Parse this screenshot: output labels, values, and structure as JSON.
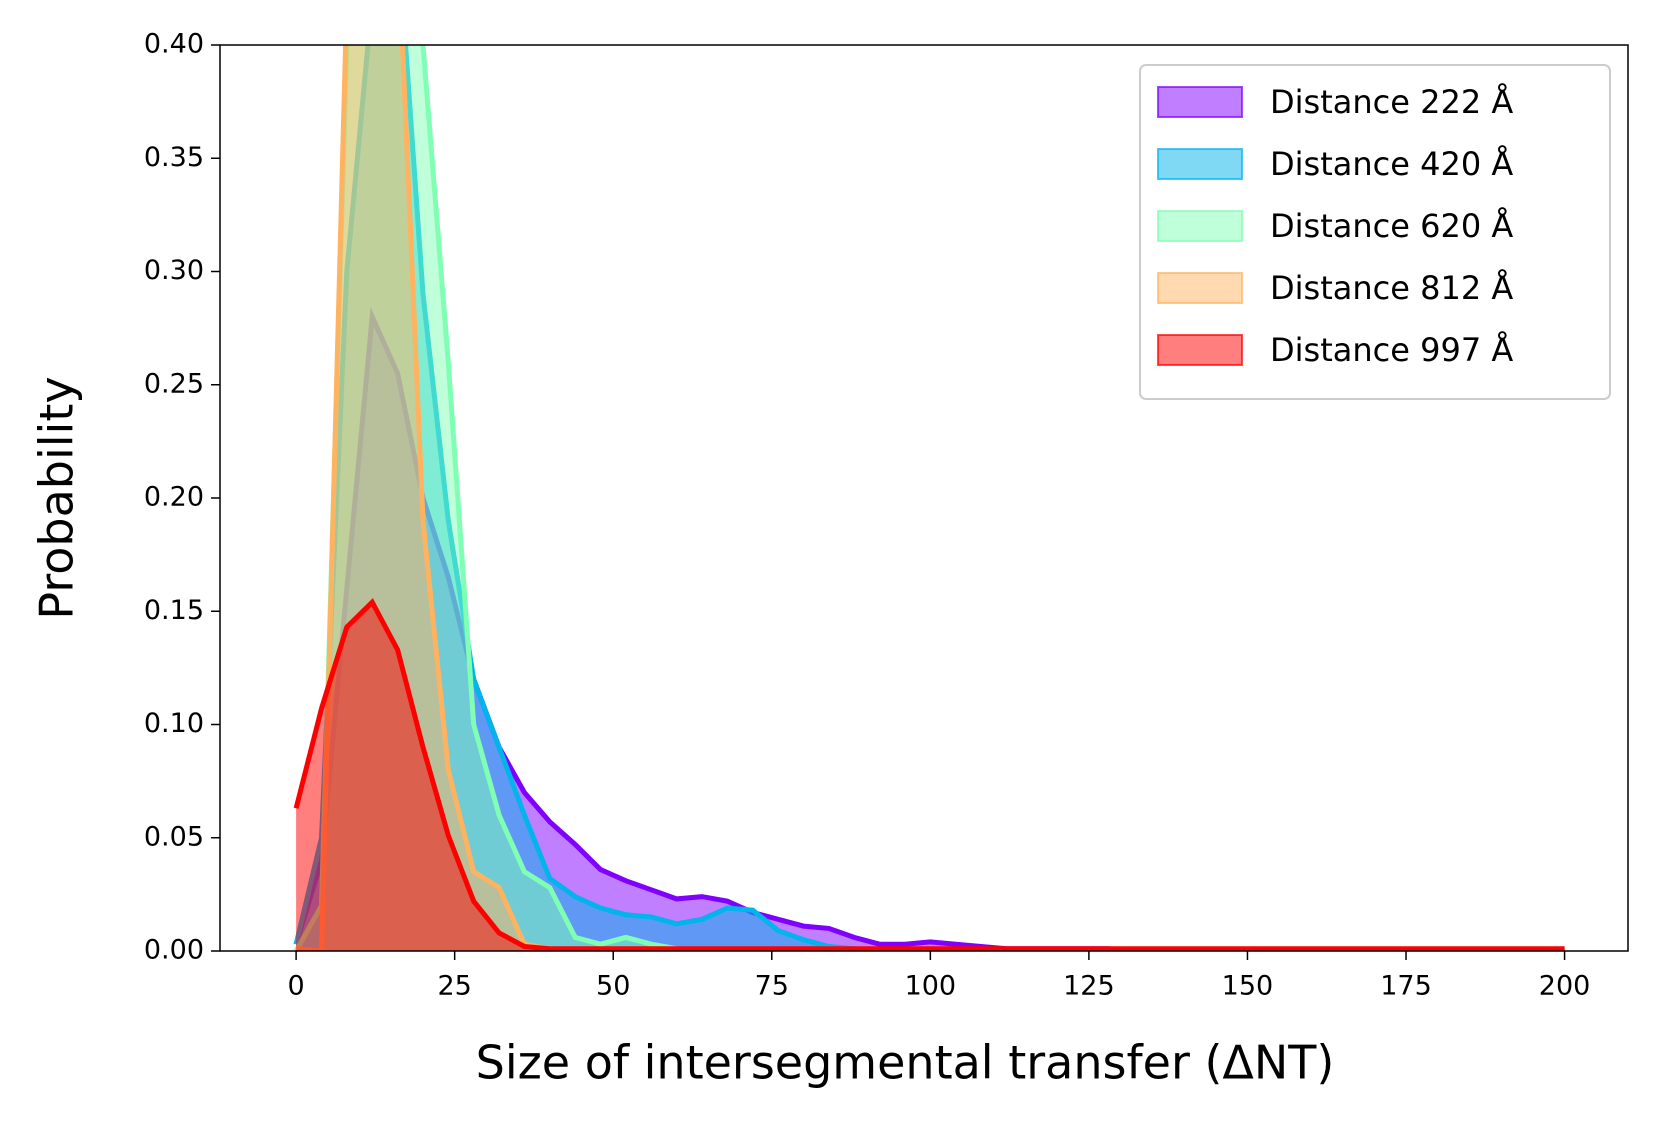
{
  "chart_data": {
    "type": "area-line",
    "xlabel": "Size of intersegmental transfer (ΔNT)",
    "ylabel": "Probability",
    "x": [
      0,
      4,
      8,
      12,
      16,
      20,
      24,
      28,
      32,
      36,
      40,
      44,
      48,
      52,
      56,
      60,
      64,
      68,
      72,
      76,
      80,
      84,
      88,
      92,
      96,
      100,
      104,
      108,
      112,
      116,
      120,
      124,
      128,
      132,
      136,
      140,
      144,
      148,
      152,
      156,
      160,
      164,
      168,
      172,
      176,
      180,
      184,
      188,
      192,
      196,
      200
    ],
    "series": [
      {
        "name": "Distance 222 Å",
        "color": "#8000ff",
        "values": [
          0.003,
          0.04,
          0.16,
          0.28,
          0.255,
          0.2,
          0.165,
          0.12,
          0.09,
          0.07,
          0.057,
          0.047,
          0.036,
          0.031,
          0.027,
          0.023,
          0.024,
          0.022,
          0.017,
          0.014,
          0.011,
          0.01,
          0.006,
          0.003,
          0.003,
          0.004,
          0.003,
          0.002,
          0.001,
          0.001,
          0.001,
          0.001,
          0.001,
          0,
          0,
          0,
          0,
          0,
          0,
          0,
          0,
          0,
          0,
          0,
          0,
          0,
          0,
          0,
          0,
          0,
          0
        ]
      },
      {
        "name": "Distance 420 Å",
        "color": "#00b4ec",
        "values": [
          0.003,
          0.05,
          0.3,
          0.42,
          0.45,
          0.29,
          0.19,
          0.12,
          0.09,
          0.06,
          0.032,
          0.024,
          0.019,
          0.016,
          0.015,
          0.012,
          0.014,
          0.019,
          0.018,
          0.009,
          0.005,
          0.002,
          0.001,
          0,
          0,
          0,
          0,
          0,
          0,
          0,
          0,
          0,
          0,
          0,
          0,
          0,
          0,
          0,
          0,
          0,
          0,
          0,
          0,
          0,
          0,
          0,
          0,
          0,
          0,
          0,
          0
        ]
      },
      {
        "name": "Distance 620 Å",
        "color": "#80ffb4",
        "values": [
          0,
          0.02,
          0.4,
          0.48,
          0.48,
          0.4,
          0.26,
          0.1,
          0.06,
          0.035,
          0.028,
          0.006,
          0.003,
          0.006,
          0.003,
          0.001,
          0,
          0,
          0,
          0,
          0,
          0,
          0,
          0,
          0,
          0,
          0,
          0,
          0,
          0,
          0,
          0,
          0,
          0,
          0,
          0,
          0,
          0,
          0,
          0,
          0,
          0,
          0,
          0,
          0,
          0,
          0,
          0,
          0,
          0,
          0
        ]
      },
      {
        "name": "Distance 812 Å",
        "color": "#ffb360",
        "values": [
          0.001,
          0,
          0.42,
          0.5,
          0.45,
          0.19,
          0.08,
          0.035,
          0.028,
          0.003,
          0.001,
          0,
          0,
          0,
          0,
          0,
          0,
          0,
          0,
          0,
          0,
          0,
          0,
          0,
          0,
          0,
          0,
          0,
          0,
          0,
          0,
          0,
          0,
          0,
          0,
          0,
          0,
          0,
          0,
          0,
          0,
          0,
          0,
          0,
          0,
          0,
          0,
          0,
          0,
          0,
          0
        ]
      },
      {
        "name": "Distance 997 Å",
        "color": "#ff0000",
        "values": [
          0.063,
          0.107,
          0.143,
          0.154,
          0.133,
          0.09,
          0.051,
          0.022,
          0.008,
          0.002,
          0.001,
          0.001,
          0.001,
          0.001,
          0.001,
          0.001,
          0.001,
          0.001,
          0.001,
          0.001,
          0.001,
          0.001,
          0.001,
          0.001,
          0.001,
          0.001,
          0.001,
          0.001,
          0.001,
          0.001,
          0.001,
          0.001,
          0.001,
          0.001,
          0.001,
          0.001,
          0.001,
          0.001,
          0.001,
          0.001,
          0.001,
          0.001,
          0.001,
          0.001,
          0.001,
          0.001,
          0.001,
          0.001,
          0.001,
          0.001,
          0.001
        ]
      }
    ],
    "xlim": [
      -12,
      210
    ],
    "ylim": [
      0,
      0.4
    ],
    "xticks": [
      0,
      25,
      50,
      75,
      100,
      125,
      150,
      175,
      200
    ],
    "yticks": [
      {
        "value": 0,
        "label": "0.00"
      },
      {
        "value": 0.05,
        "label": "0.05"
      },
      {
        "value": 0.1,
        "label": "0.10"
      },
      {
        "value": 0.15,
        "label": "0.15"
      },
      {
        "value": 0.2,
        "label": "0.20"
      },
      {
        "value": 0.25,
        "label": "0.25"
      },
      {
        "value": 0.3,
        "label": "0.30"
      },
      {
        "value": 0.35,
        "label": "0.35"
      },
      {
        "value": 0.4,
        "label": "0.40"
      }
    ],
    "fill_alpha": 0.5,
    "legend": "upper right",
    "grid": false
  }
}
